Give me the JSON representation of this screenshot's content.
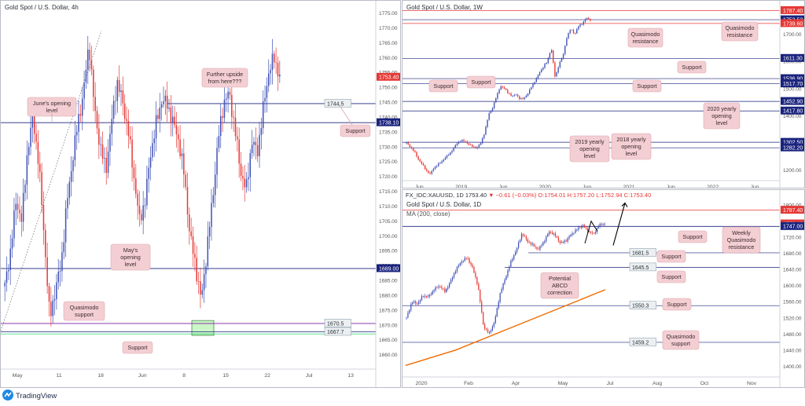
{
  "panels": [
    {
      "title": "Gold Spot / U.S. Dollar, 4h",
      "chart_data": {
        "type": "candlestick",
        "timeframe": "4h",
        "x_ticks": [
          "May",
          "11",
          "18",
          "Jun",
          "8",
          "15",
          "22",
          "Jul",
          "13"
        ],
        "y_ticks": [
          1660,
          1665,
          1670,
          1675,
          1680,
          1685,
          1690,
          1695,
          1700,
          1705,
          1710,
          1715,
          1720,
          1725,
          1730,
          1735,
          1740,
          1745,
          1750,
          1755,
          1760,
          1765,
          1770,
          1775
        ],
        "ylim": [
          1657,
          1777
        ],
        "price_labels": [
          {
            "text": "1744.5",
            "value": 1744.5,
            "style": "gray"
          },
          {
            "text": "1753.40",
            "value": 1753.4,
            "style": "red"
          },
          {
            "text": "1738.10",
            "value": 1738.1,
            "style": "navy"
          },
          {
            "text": "1689.00",
            "value": 1689.0,
            "style": "navy"
          },
          {
            "text": "1670.5",
            "value": 1670.5,
            "style": "gray"
          },
          {
            "text": "1667.7",
            "value": 1667.7,
            "style": "gray"
          }
        ],
        "levels": [
          {
            "value": 1738.1,
            "color": "#1a237e"
          },
          {
            "value": 1744.5,
            "color": "#1a237e"
          },
          {
            "value": 1689.0,
            "color": "#1a237e"
          },
          {
            "value": 1670.5,
            "color": "#7b1fa2"
          },
          {
            "value": 1667.7,
            "color": "#1a237e"
          },
          {
            "value": 1667.0,
            "color": "#00c853"
          }
        ],
        "annotations": [
          {
            "text": "June's opening level",
            "callout": "left"
          },
          {
            "text": "Further upside from here???",
            "callout": "pointer"
          },
          {
            "text": "Support",
            "callout": "right"
          },
          {
            "text": "May's opening level",
            "callout": "down"
          },
          {
            "text": "Quasimodo support",
            "callout": "down"
          },
          {
            "text": "Support",
            "callout": "up"
          }
        ],
        "series_close": [
          1683,
          1695,
          1712,
          1705,
          1728,
          1740,
          1725,
          1700,
          1672,
          1682,
          1690,
          1710,
          1725,
          1738,
          1748,
          1765,
          1742,
          1730,
          1722,
          1738,
          1752,
          1745,
          1735,
          1720,
          1705,
          1712,
          1728,
          1738,
          1746,
          1744,
          1738,
          1732,
          1720,
          1700,
          1690,
          1678,
          1695,
          1712,
          1732,
          1745,
          1748,
          1736,
          1722,
          1715,
          1732,
          1728,
          1742,
          1755,
          1760,
          1753.4
        ]
      }
    },
    {
      "title": "Gold Spot / U.S. Dollar, 1W",
      "chart_data": {
        "type": "candlestick",
        "timeframe": "1W",
        "x_ticks": [
          "Jun",
          "2019",
          "Jun",
          "2020",
          "Jun",
          "2021",
          "Jun",
          "2022",
          "Jun"
        ],
        "y_ticks": [
          1200,
          1250,
          1300,
          1350,
          1400,
          1450,
          1500,
          1550,
          1600,
          1650,
          1700,
          1750
        ],
        "ylim": [
          1170,
          1800
        ],
        "price_labels": [
          {
            "text": "1787.40",
            "value": 1787.4,
            "style": "red"
          },
          {
            "text": "1753.52",
            "value": 1753.52,
            "style": "navy"
          },
          {
            "text": "1739.60",
            "value": 1739.6,
            "style": "red"
          },
          {
            "text": "1611.30",
            "value": 1611.3,
            "style": "navy"
          },
          {
            "text": "1536.90",
            "value": 1536.9,
            "style": "navy"
          },
          {
            "text": "1517.70",
            "value": 1517.7,
            "style": "navy"
          },
          {
            "text": "1452.90",
            "value": 1452.9,
            "style": "navy"
          },
          {
            "text": "1417.80",
            "value": 1417.8,
            "style": "navy"
          },
          {
            "text": "1302.50",
            "value": 1302.5,
            "style": "navy"
          },
          {
            "text": "1282.20",
            "value": 1282.2,
            "style": "navy"
          }
        ],
        "annotations": [
          {
            "text": "Quasimodo resistance"
          },
          {
            "text": "Quasimodo resistance"
          },
          {
            "text": "Support"
          },
          {
            "text": "Support"
          },
          {
            "text": "Support"
          },
          {
            "text": "Support"
          },
          {
            "text": "2020 yearly opening level"
          },
          {
            "text": "2019 yearly opening level"
          },
          {
            "text": "2018 yearly opening level"
          }
        ],
        "series_close": [
          1300,
          1285,
          1268,
          1240,
          1222,
          1200,
          1185,
          1208,
          1220,
          1232,
          1248,
          1260,
          1280,
          1300,
          1310,
          1305,
          1295,
          1285,
          1282,
          1300,
          1340,
          1405,
          1430,
          1470,
          1510,
          1500,
          1485,
          1470,
          1480,
          1460,
          1465,
          1480,
          1510,
          1530,
          1560,
          1580,
          1600,
          1650,
          1540,
          1590,
          1620,
          1690,
          1720,
          1700,
          1730,
          1740,
          1760,
          1753.5
        ]
      }
    },
    {
      "title": "Gold Spot / U.S. Dollar, 1D",
      "header": {
        "symbol": "FX_IDC:XAUUSD, 1D",
        "last": "1753.40",
        "change": "▼ −0.61 (−0.03%)",
        "ohlc": "O:1754.01  H:1757.20  L:1752.94  C:1753.40"
      },
      "indicator": "MA (200, close)",
      "chart_data": {
        "type": "candlestick",
        "timeframe": "1D",
        "x_ticks": [
          "2020",
          "Feb",
          "Apr",
          "May",
          "Jul",
          "Aug",
          "Oct",
          "Nov"
        ],
        "y_ticks": [
          1400,
          1440,
          1480,
          1520,
          1560,
          1600,
          1640,
          1680,
          1720,
          1760,
          1800
        ],
        "ylim": [
          1385,
          1810
        ],
        "price_labels": [
          {
            "text": "1787.40",
            "value": 1787.4,
            "style": "red"
          },
          {
            "text": "1753.40",
            "value": 1753.4,
            "style": "red"
          },
          {
            "text": "1747.00",
            "value": 1747.0,
            "style": "navy"
          },
          {
            "text": "1681.5",
            "value": 1681.5,
            "style": "gray"
          },
          {
            "text": "1645.5",
            "value": 1645.5,
            "style": "gray"
          },
          {
            "text": "1550.3",
            "value": 1550.3,
            "style": "gray"
          },
          {
            "text": "1459.2",
            "value": 1459.2,
            "style": "gray"
          }
        ],
        "annotations": [
          {
            "text": "Weekly Quasimodo resistance"
          },
          {
            "text": "Support"
          },
          {
            "text": "Support"
          },
          {
            "text": "Support"
          },
          {
            "text": "Support"
          },
          {
            "text": "Potential ABCD correction"
          },
          {
            "text": "Quasimodo support"
          }
        ],
        "ma200": [
          {
            "x": 0,
            "y": 1402
          },
          {
            "x": 0.25,
            "y": 1440
          },
          {
            "x": 0.5,
            "y": 1490
          },
          {
            "x": 0.75,
            "y": 1540
          },
          {
            "x": 1,
            "y": 1590
          }
        ],
        "series_close": [
          1520,
          1560,
          1555,
          1575,
          1572,
          1590,
          1600,
          1585,
          1610,
          1640,
          1660,
          1670,
          1645,
          1600,
          1500,
          1480,
          1510,
          1580,
          1620,
          1660,
          1690,
          1730,
          1710,
          1700,
          1690,
          1710,
          1735,
          1725,
          1705,
          1712,
          1728,
          1740,
          1750,
          1735,
          1728,
          1750,
          1753.4
        ]
      }
    }
  ],
  "footer": {
    "brand": "TradingView"
  }
}
